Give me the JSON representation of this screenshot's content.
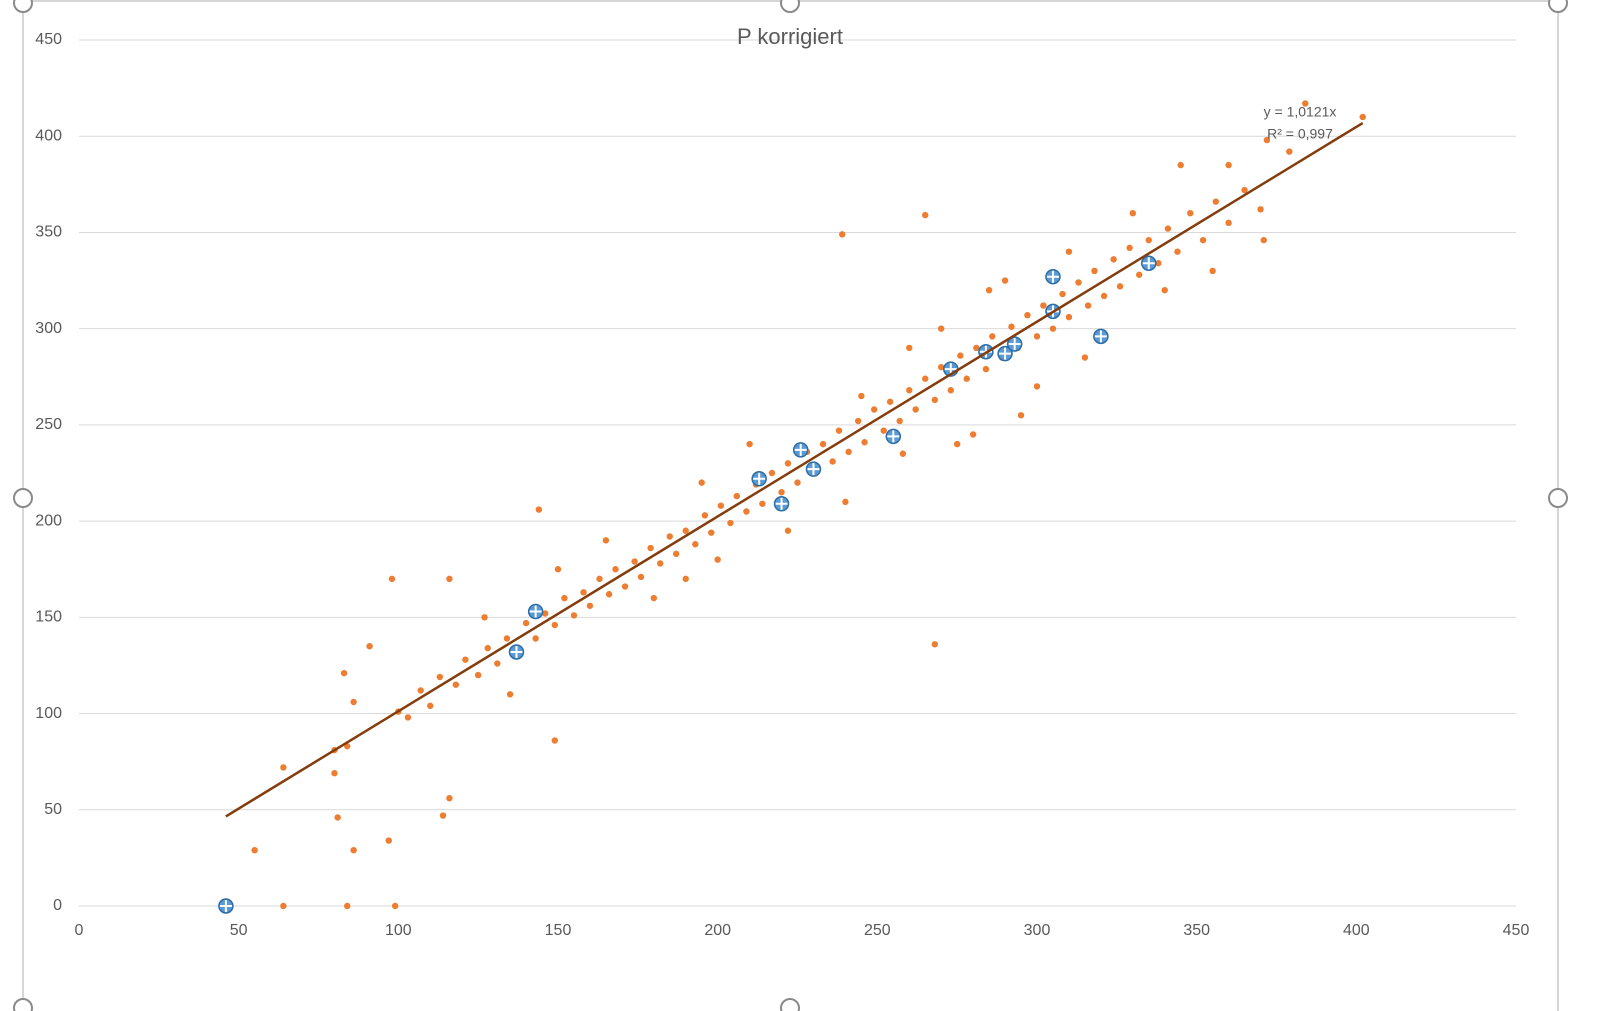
{
  "chart_data": {
    "type": "scatter",
    "title": "P korrigiert",
    "xlim": [
      0,
      450
    ],
    "xticks": [
      0,
      50,
      100,
      150,
      200,
      250,
      300,
      350,
      400,
      450
    ],
    "ylim": [
      0,
      450
    ],
    "yticks": [
      0,
      50,
      100,
      150,
      200,
      250,
      300,
      350,
      400,
      450
    ],
    "grid": true,
    "series": [
      {
        "color": "#ED7D31",
        "marker": "dot",
        "x": [
          55,
          64,
          64,
          84,
          99,
          80,
          80,
          81,
          83,
          86,
          91,
          97,
          98,
          116,
          114,
          116,
          144,
          149,
          239,
          265,
          268,
          384,
          402,
          379,
          371,
          372,
          84,
          86,
          100,
          103,
          107,
          110,
          113,
          118,
          121,
          125,
          128,
          131,
          134,
          137,
          140,
          143,
          146,
          149,
          152,
          155,
          158,
          160,
          163,
          166,
          168,
          171,
          174,
          176,
          179,
          182,
          185,
          187,
          190,
          193,
          196,
          198,
          201,
          204,
          206,
          209,
          212,
          214,
          217,
          220,
          222,
          225,
          228,
          230,
          233,
          236,
          238,
          241,
          244,
          246,
          249,
          252,
          254,
          257,
          260,
          262,
          265,
          268,
          270,
          273,
          276,
          278,
          281,
          284,
          286,
          289,
          292,
          294,
          297,
          300,
          302,
          305,
          308,
          310,
          313,
          316,
          318,
          321,
          324,
          326,
          329,
          332,
          335,
          338,
          341,
          344,
          348,
          352,
          356,
          360,
          365,
          370,
          258,
          245,
          290,
          300,
          210,
          222,
          180,
          165,
          135,
          127,
          315,
          330,
          280,
          270,
          195,
          285,
          200,
          150,
          240,
          275,
          295,
          310,
          345,
          340,
          355,
          360,
          190,
          260
        ],
        "values": [
          29,
          0,
          72,
          0,
          0,
          81,
          69,
          46,
          121,
          29,
          135,
          34,
          170,
          170,
          47,
          56,
          206,
          86,
          349,
          359,
          136,
          417,
          410,
          392,
          346,
          398,
          83,
          106,
          101,
          98,
          112,
          104,
          119,
          115,
          128,
          120,
          134,
          126,
          139,
          131,
          147,
          139,
          152,
          146,
          160,
          151,
          163,
          156,
          170,
          162,
          175,
          166,
          179,
          171,
          186,
          178,
          192,
          183,
          195,
          188,
          203,
          194,
          208,
          199,
          213,
          205,
          219,
          209,
          225,
          215,
          230,
          220,
          236,
          226,
          240,
          231,
          247,
          236,
          252,
          241,
          258,
          247,
          262,
          252,
          268,
          258,
          274,
          263,
          280,
          268,
          286,
          274,
          290,
          279,
          296,
          285,
          301,
          290,
          307,
          296,
          312,
          300,
          318,
          306,
          324,
          312,
          330,
          317,
          336,
          322,
          342,
          328,
          346,
          334,
          352,
          340,
          360,
          346,
          366,
          355,
          372,
          362,
          235,
          265,
          325,
          270,
          240,
          195,
          160,
          190,
          110,
          150,
          285,
          360,
          245,
          300,
          220,
          320,
          180,
          175,
          210,
          240,
          255,
          340,
          385,
          320,
          330,
          385,
          170,
          290
        ]
      },
      {
        "color": "#5B9BD5",
        "marker": "cross-circle",
        "x": [
          46,
          137,
          143,
          213,
          220,
          226,
          230,
          255,
          273,
          284,
          290,
          293,
          305,
          305,
          320,
          335
        ],
        "values": [
          0,
          132,
          153,
          222,
          209,
          237,
          227,
          244,
          279,
          288,
          287,
          292,
          327,
          309,
          296,
          334
        ]
      }
    ],
    "trendline": {
      "color": "#843C0C",
      "slope": 1.0121,
      "x": [
        46,
        402
      ],
      "equation": "y = 1,0121x",
      "r_squared": "R² = 0,997"
    }
  }
}
